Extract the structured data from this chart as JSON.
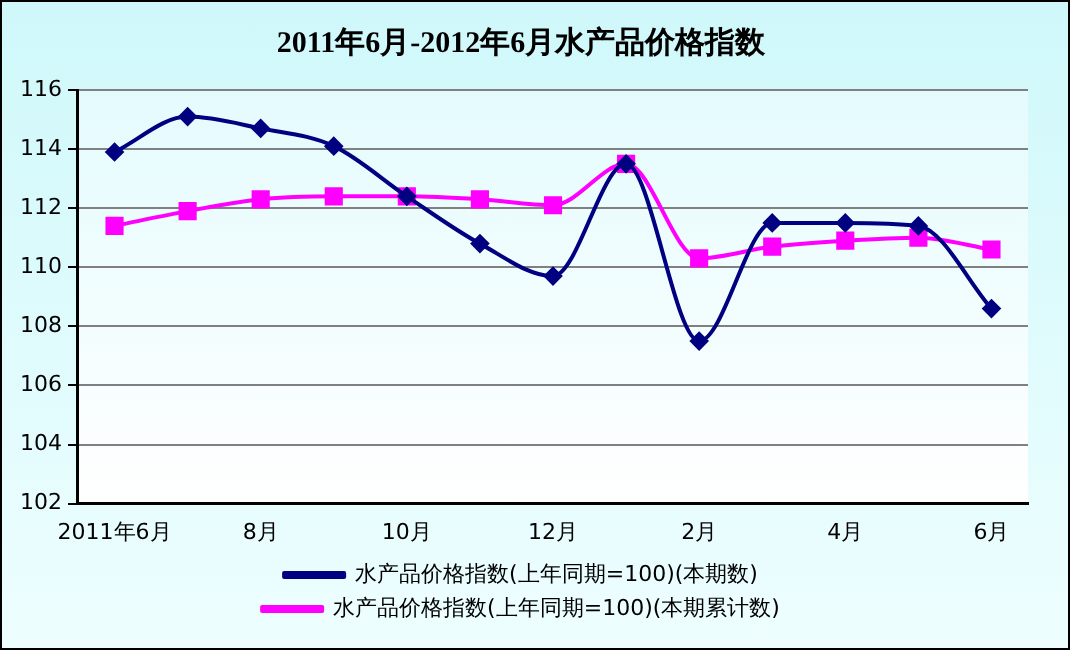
{
  "chart_data": {
    "type": "line",
    "title": "2011年6月-2012年6月水产品价格指数",
    "categories": [
      "2011年6月",
      null,
      "8月",
      null,
      "10月",
      null,
      "12月",
      null,
      "2月",
      null,
      "4月",
      null,
      "6月"
    ],
    "series": [
      {
        "name": "水产品价格指数(上年同期=100)(本期数)",
        "color": "#000080",
        "marker": "diamond",
        "values": [
          113.9,
          115.1,
          114.7,
          114.1,
          112.4,
          110.8,
          109.7,
          113.5,
          107.5,
          111.5,
          111.5,
          111.4,
          108.6
        ]
      },
      {
        "name": "水产品价格指数(上年同期=100)(本期累计数)",
        "color": "#ff00ff",
        "marker": "square",
        "values": [
          111.4,
          111.9,
          112.3,
          112.4,
          112.4,
          112.3,
          112.1,
          113.5,
          110.3,
          110.7,
          110.9,
          111.0,
          110.6
        ]
      }
    ],
    "ylim": [
      102,
      116
    ],
    "yticks": [
      102,
      104,
      106,
      108,
      110,
      112,
      114,
      116
    ],
    "grid": "y",
    "legend": "bottom",
    "line_style": "solid"
  }
}
